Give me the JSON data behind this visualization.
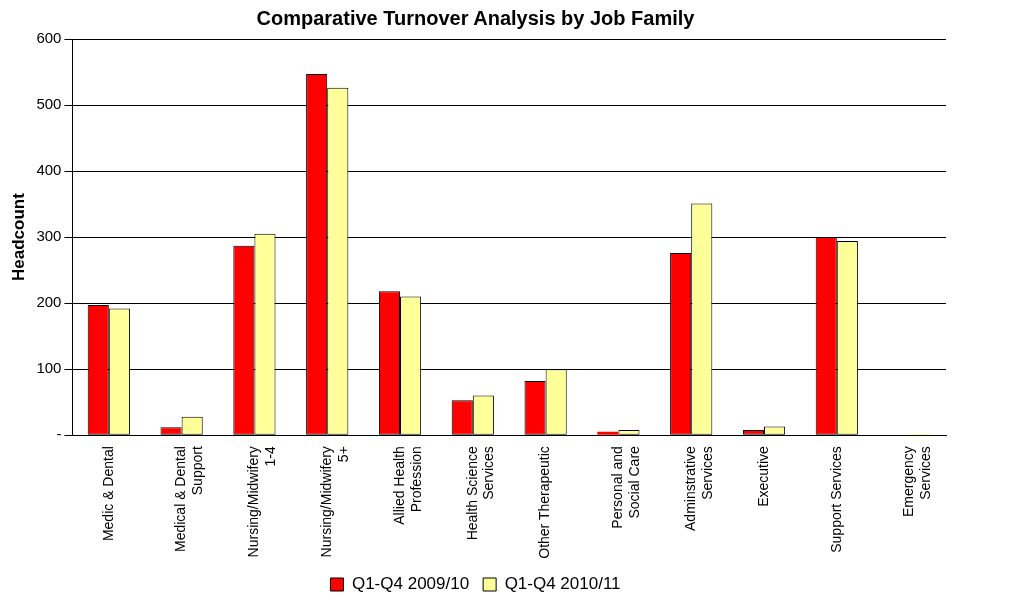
{
  "chart_data": {
    "type": "bar",
    "title": "Comparative Turnover Analysis by Job Family",
    "ylabel": "Headcount",
    "categories": [
      "Medic & Dental",
      "Medical & Dental Support",
      "Nursing/Midwifery 1-4",
      "Nursing/Midwifery 5+",
      "Allied Health Profession",
      "Health Science Services",
      "Other Therapeutic",
      "Personal and Social Care",
      "Adminstrative Services",
      "Executive",
      "Support Services",
      "Emergency Services"
    ],
    "series": [
      {
        "name": "Q1-Q4 2009/10",
        "color": "#ff0000",
        "values": [
          197,
          12,
          287,
          547,
          218,
          53,
          82,
          5,
          276,
          8,
          300,
          0
        ]
      },
      {
        "name": "Q1-Q4 2010/11",
        "color": "#ffff99",
        "values": [
          192,
          28,
          305,
          526,
          210,
          60,
          100,
          8,
          351,
          13,
          294,
          2
        ]
      }
    ],
    "ylim": [
      0,
      600
    ],
    "yticks": [
      {
        "value": 0,
        "label": "-"
      },
      100,
      200,
      300,
      400,
      500,
      600
    ],
    "grid": "y",
    "legend": "bottom"
  }
}
